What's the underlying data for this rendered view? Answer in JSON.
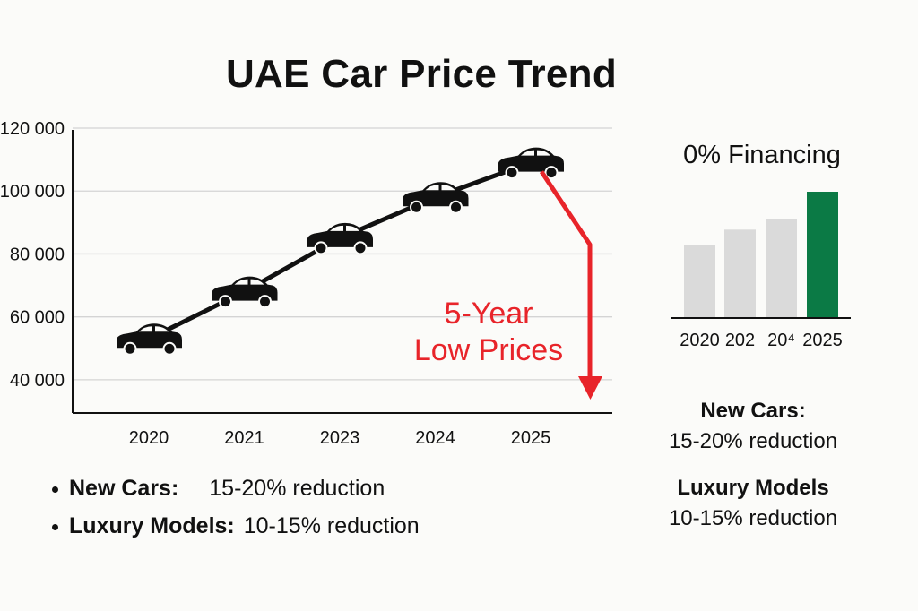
{
  "title": "UAE Car Price Trend",
  "chart_data": [
    {
      "type": "line",
      "title": "UAE Car Price Trend",
      "categories": [
        "2020",
        "2021",
        "2023",
        "2024",
        "2025"
      ],
      "values": [
        53000,
        68000,
        85000,
        98000,
        109000
      ],
      "y_tick_labels": [
        "120 000",
        "100 000",
        "80 000",
        "60 000",
        "40 000"
      ],
      "y_ticks": [
        120000,
        100000,
        80000,
        60000,
        40000
      ],
      "ylim": [
        30000,
        120000
      ],
      "grid": true,
      "marker": "car-icon",
      "line_color": "#111111",
      "annotation": {
        "lines": [
          "5-Year",
          "Low Prices"
        ],
        "color": "#e8242a"
      }
    },
    {
      "type": "bar",
      "title": "0% Financing",
      "categories": [
        "2020",
        "202",
        "20⁴",
        "2025"
      ],
      "values": [
        0.58,
        0.7,
        0.78,
        1.0
      ],
      "colors": [
        "#dadada",
        "#dadada",
        "#dadada",
        "#0b7a45"
      ],
      "grid": false
    }
  ],
  "bullets": [
    {
      "label": "New Cars:",
      "value": "15-20% reduction"
    },
    {
      "label": "Luxury Models:",
      "value": "10-15% reduction"
    }
  ],
  "side_notes": [
    {
      "label": "New Cars:",
      "value": "15-20% reduction"
    },
    {
      "label": "Luxury Models",
      "value": "10-15% reduction"
    }
  ]
}
